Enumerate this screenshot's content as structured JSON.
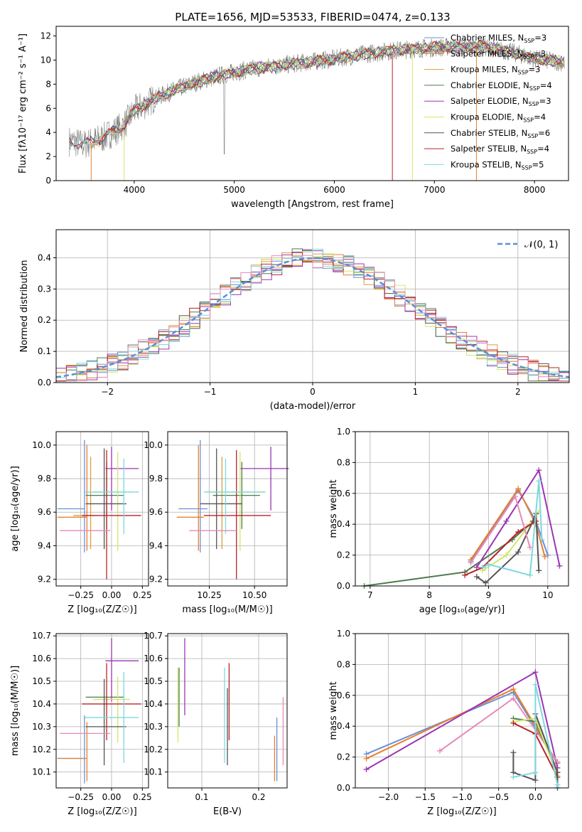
{
  "title": "PLATE=1656, MJD=53533, FIBERID=0474, z=0.133",
  "colors": {
    "Chabrier MILES": "#6a8fd8",
    "Salpeter MILES": "#e87f2e",
    "Kroupa MILES": "#d9a03a",
    "Chabrier ELODIE": "#4f7a4f",
    "Salpeter ELODIE": "#9b35b5",
    "Kroupa ELODIE": "#cfe86a",
    "Chabrier STELIB": "#555555",
    "Salpeter STELIB": "#b8232a",
    "Kroupa STELIB": "#7fd8de",
    "pinkish": "#e68ab8",
    "gray_spec": "#808080",
    "gauss": "#5b8fd6"
  },
  "chart_data": [
    {
      "type": "line",
      "title": "PLATE=1656, MJD=53533, FIBERID=0474, z=0.133",
      "xlabel": "wavelength [Angstrom, rest frame]",
      "ylabel": "Flux [fλ10⁻¹⁷ erg cm⁻² s⁻¹ A⁻¹]",
      "xlim": [
        3220,
        8340
      ],
      "ylim": [
        0,
        12.8
      ],
      "xticks": [
        "4000",
        "5000",
        "6000",
        "7000",
        "8000"
      ],
      "yticks": [
        "0",
        "2",
        "4",
        "6",
        "8",
        "10",
        "12"
      ],
      "legend_position": "right",
      "legend": [
        {
          "label": "Chabrier MILES, N",
          "sub": "SSP",
          "tail": "=3"
        },
        {
          "label": "Salpeter MILES, N",
          "sub": "SSP",
          "tail": "=3"
        },
        {
          "label": "Kroupa MILES, N",
          "sub": "SSP",
          "tail": "=3"
        },
        {
          "label": "Chabrier ELODIE, N",
          "sub": "SSP",
          "tail": "=4"
        },
        {
          "label": "Salpeter ELODIE, N",
          "sub": "SSP",
          "tail": "=3"
        },
        {
          "label": "Kroupa ELODIE, N",
          "sub": "SSP",
          "tail": "=4"
        },
        {
          "label": "Chabrier STELIB, N",
          "sub": "SSP",
          "tail": "=6"
        },
        {
          "label": "Salpeter STELIB, N",
          "sub": "SSP",
          "tail": "=4"
        },
        {
          "label": "Kroupa STELIB, N",
          "sub": "SSP",
          "tail": "=5"
        }
      ],
      "continuum": {
        "x": [
          3350,
          3500,
          3700,
          3900,
          4000,
          4200,
          4400,
          4600,
          4800,
          5000,
          5200,
          5500,
          5800,
          6000,
          6300,
          6600,
          6900,
          7200,
          7500,
          7800,
          8000,
          8300
        ],
        "y": [
          3.3,
          3.0,
          3.6,
          4.6,
          5.8,
          6.8,
          7.5,
          8.1,
          8.6,
          9.0,
          9.3,
          9.6,
          9.9,
          10.1,
          10.5,
          10.8,
          11.0,
          11.1,
          11.1,
          10.6,
          10.1,
          9.8
        ]
      }
    },
    {
      "type": "bar",
      "xlabel": "(data-model)/error",
      "ylabel": "Normed distribution",
      "xlim": [
        -2.5,
        2.5
      ],
      "ylim": [
        0,
        0.49
      ],
      "xticks": [
        "−2",
        "−1",
        "0",
        "1",
        "2"
      ],
      "yticks": [
        "0.0",
        "0.1",
        "0.2",
        "0.3",
        "0.4"
      ],
      "legend": "𝒩(0, 1)",
      "legend_position": "top-right",
      "bin_width": 0.1,
      "x_start": -2.5
    },
    {
      "type": "scatter",
      "xlabel": "Z [log₁₀(Z/Z☉)]",
      "ylabel": "age  [log₁₀(age/yr)]",
      "xticks": [
        "−0.25",
        "0.00",
        "0.25"
      ],
      "yticks": [
        "9.2",
        "9.4",
        "9.6",
        "9.8",
        "10.0"
      ],
      "points": [
        {
          "series": "Chabrier MILES",
          "x": -0.22,
          "xerr": [
            0.22,
            0.0
          ],
          "y": 9.62,
          "yerr": [
            0.26,
            0.41
          ]
        },
        {
          "series": "Salpeter MILES",
          "x": -0.2,
          "xerr": [
            0.24,
            0.0
          ],
          "y": 9.57,
          "yerr": [
            0.2,
            0.43
          ]
        },
        {
          "series": "Kroupa MILES",
          "x": -0.17,
          "xerr": [
            0.14,
            0.05
          ],
          "y": 9.58,
          "yerr": [
            0.2,
            0.35
          ]
        },
        {
          "series": "Chabrier ELODIE",
          "x": -0.04,
          "xerr": [
            0.17,
            0.14
          ],
          "y": 9.7,
          "yerr": [
            0.2,
            0.2
          ]
        },
        {
          "series": "Salpeter ELODIE",
          "x": 0.0,
          "xerr": [
            0.05,
            0.22
          ],
          "y": 9.86,
          "yerr": [
            0.25,
            0.13
          ]
        },
        {
          "series": "Kroupa ELODIE",
          "x": 0.05,
          "xerr": [
            0.2,
            0.1
          ],
          "y": 9.72,
          "yerr": [
            0.35,
            0.24
          ]
        },
        {
          "series": "Chabrier STELIB",
          "x": -0.06,
          "xerr": [
            0.15,
            0.18
          ],
          "y": 9.65,
          "yerr": [
            0.27,
            0.33
          ]
        },
        {
          "series": "Salpeter STELIB",
          "x": -0.04,
          "xerr": [
            0.2,
            0.28
          ],
          "y": 9.58,
          "yerr": [
            0.38,
            0.39
          ]
        },
        {
          "series": "Kroupa STELIB",
          "x": 0.1,
          "xerr": [
            0.32,
            0.12
          ],
          "y": 9.72,
          "yerr": [
            0.25,
            0.2
          ]
        },
        {
          "series": "pinkish",
          "x": -0.16,
          "xerr": [
            0.26,
            0.15
          ],
          "y": 9.49,
          "yerr": [
            0.0,
            0.0
          ]
        }
      ]
    },
    {
      "type": "scatter",
      "xlabel": "mass [log₁₀(M/M☉)]",
      "xticks": [
        "10.25",
        "10.50"
      ],
      "yticks": [
        "9.2",
        "9.4",
        "9.6",
        "9.8",
        "10.0"
      ],
      "points": [
        {
          "series": "Chabrier MILES",
          "x": 10.2,
          "xerr": [
            0.12,
            0.04
          ],
          "y": 9.62,
          "yerr": [
            0.26,
            0.41
          ]
        },
        {
          "series": "Salpeter MILES",
          "x": 10.19,
          "xerr": [
            0.12,
            0.03
          ],
          "y": 9.57,
          "yerr": [
            0.2,
            0.43
          ]
        },
        {
          "series": "Kroupa MILES",
          "x": 10.32,
          "xerr": [
            0.0,
            0.0
          ],
          "y": 9.58,
          "yerr": [
            0.2,
            0.35
          ]
        },
        {
          "series": "Chabrier ELODIE",
          "x": 10.43,
          "xerr": [
            0.16,
            0.1
          ],
          "y": 9.7,
          "yerr": [
            0.2,
            0.2
          ]
        },
        {
          "series": "Salpeter ELODIE",
          "x": 10.59,
          "xerr": [
            0.17,
            0.1
          ],
          "y": 9.86,
          "yerr": [
            0.25,
            0.13
          ]
        },
        {
          "series": "Kroupa ELODIE",
          "x": 10.42,
          "xerr": [
            0.18,
            0.14
          ],
          "y": 9.72,
          "yerr": [
            0.35,
            0.24
          ]
        },
        {
          "series": "Chabrier STELIB",
          "x": 10.29,
          "xerr": [
            0.09,
            0.14
          ],
          "y": 9.65,
          "yerr": [
            0.27,
            0.33
          ]
        },
        {
          "series": "Salpeter STELIB",
          "x": 10.4,
          "xerr": [
            0.18,
            0.19
          ],
          "y": 9.58,
          "yerr": [
            0.38,
            0.39
          ]
        },
        {
          "series": "Kroupa STELIB",
          "x": 10.34,
          "xerr": [
            0.12,
            0.22
          ],
          "y": 9.72,
          "yerr": [
            0.25,
            0.2
          ]
        },
        {
          "series": "pinkish",
          "x": 10.27,
          "xerr": [
            0.13,
            0.13
          ],
          "y": 9.49,
          "yerr": [
            0.0,
            0.0
          ]
        }
      ]
    },
    {
      "type": "line",
      "xlabel": "age  [log₁₀(age/yr)]",
      "ylabel": "mass weight",
      "xlim": [
        6.75,
        10.35
      ],
      "ylim": [
        0,
        1
      ],
      "xticks": [
        "7",
        "8",
        "9",
        "10"
      ],
      "yticks": [
        "0.0",
        "0.2",
        "0.4",
        "0.6",
        "0.8",
        "1.0"
      ],
      "series": [
        {
          "name": "Chabrier MILES",
          "x": [
            8.7,
            9.5,
            9.8,
            10.0
          ],
          "y": [
            0.16,
            0.62,
            0.42,
            0.2
          ]
        },
        {
          "name": "Salpeter MILES",
          "x": [
            8.7,
            9.5,
            9.8,
            9.95
          ],
          "y": [
            0.17,
            0.63,
            0.4,
            0.19
          ]
        },
        {
          "name": "Chabrier ELODIE",
          "x": [
            6.9,
            8.6,
            9.4,
            9.75
          ],
          "y": [
            0.0,
            0.09,
            0.3,
            0.42
          ]
        },
        {
          "name": "Salpeter ELODIE",
          "x": [
            8.8,
            9.3,
            9.85,
            10.2
          ],
          "y": [
            0.12,
            0.42,
            0.75,
            0.13
          ]
        },
        {
          "name": "Kroupa ELODIE",
          "x": [
            8.9,
            9.3,
            9.7,
            9.85
          ],
          "y": [
            0.1,
            0.2,
            0.4,
            0.48
          ]
        },
        {
          "name": "Chabrier STELIB",
          "x": [
            8.8,
            8.95,
            9.5,
            9.75,
            9.8,
            9.85
          ],
          "y": [
            0.06,
            0.02,
            0.22,
            0.42,
            0.47,
            0.1
          ]
        },
        {
          "name": "Salpeter STELIB",
          "x": [
            8.6,
            8.9,
            9.5,
            9.8
          ],
          "y": [
            0.07,
            0.12,
            0.35,
            0.42
          ]
        },
        {
          "name": "Kroupa STELIB",
          "x": [
            8.9,
            9.0,
            9.7,
            9.85,
            9.9
          ],
          "y": [
            0.12,
            0.14,
            0.07,
            0.68,
            0.3
          ]
        },
        {
          "name": "pinkish",
          "x": [
            8.7,
            9.45,
            9.7
          ],
          "y": [
            0.15,
            0.58,
            0.25
          ]
        }
      ]
    },
    {
      "type": "scatter",
      "xlabel": "Z [log₁₀(Z/Z☉)]",
      "ylabel": "mass [log₁₀(M/M☉)]",
      "xticks": [
        "−0.25",
        "0.00",
        "0.25"
      ],
      "yticks": [
        "10.1",
        "10.2",
        "10.3",
        "10.4",
        "10.5",
        "10.6",
        "10.7"
      ],
      "points": [
        {
          "series": "Chabrier MILES",
          "x": -0.22,
          "xerr": [
            0.22,
            0.0
          ],
          "y": 10.16,
          "yerr": [
            0.11,
            0.19
          ]
        },
        {
          "series": "Salpeter MILES",
          "x": -0.2,
          "xerr": [
            0.24,
            0.0
          ],
          "y": 10.16,
          "yerr": [
            0.1,
            0.16
          ]
        },
        {
          "series": "Kroupa MILES",
          "x": -0.15,
          "xerr": [
            0.0,
            0.0
          ],
          "y": 10.16,
          "yerr": [
            0.0,
            0.0
          ]
        },
        {
          "series": "Chabrier ELODIE",
          "x": -0.04,
          "xerr": [
            0.17,
            0.14
          ],
          "y": 10.43,
          "yerr": [
            0.0,
            0.0
          ]
        },
        {
          "series": "Salpeter ELODIE",
          "x": 0.0,
          "xerr": [
            0.05,
            0.22
          ],
          "y": 10.59,
          "yerr": [
            0.18,
            0.1
          ]
        },
        {
          "series": "Kroupa ELODIE",
          "x": 0.05,
          "xerr": [
            0.2,
            0.1
          ],
          "y": 10.42,
          "yerr": [
            0.19,
            0.1
          ]
        },
        {
          "series": "Chabrier STELIB",
          "x": -0.06,
          "xerr": [
            0.15,
            0.18
          ],
          "y": 10.3,
          "yerr": [
            0.17,
            0.21
          ]
        },
        {
          "series": "Salpeter STELIB",
          "x": -0.04,
          "xerr": [
            0.2,
            0.28
          ],
          "y": 10.4,
          "yerr": [
            0.16,
            0.18
          ]
        },
        {
          "series": "Kroupa STELIB",
          "x": 0.1,
          "xerr": [
            0.32,
            0.12
          ],
          "y": 10.34,
          "yerr": [
            0.2,
            0.2
          ]
        },
        {
          "series": "pinkish",
          "x": -0.16,
          "xerr": [
            0.26,
            0.15
          ],
          "y": 10.27,
          "yerr": [
            0.0,
            0.0
          ]
        }
      ]
    },
    {
      "type": "scatter",
      "xlabel": "E(B-V)",
      "xticks": [
        "0.1",
        "0.2"
      ],
      "yticks": [
        "10.1",
        "10.2",
        "10.3",
        "10.4",
        "10.5",
        "10.6",
        "10.7"
      ],
      "points": [
        {
          "series": "Kroupa ELODIE",
          "x": 0.058,
          "y": 10.38,
          "yerr": [
            0.15,
            0.18
          ]
        },
        {
          "series": "Chabrier ELODIE",
          "x": 0.06,
          "y": 10.43,
          "yerr": [
            0.13,
            0.13
          ]
        },
        {
          "series": "Salpeter ELODIE",
          "x": 0.07,
          "y": 10.52,
          "yerr": [
            0.17,
            0.17
          ]
        },
        {
          "series": "Kroupa STELIB",
          "x": 0.14,
          "y": 10.34,
          "yerr": [
            0.2,
            0.22
          ]
        },
        {
          "series": "Chabrier STELIB",
          "x": 0.145,
          "y": 10.3,
          "yerr": [
            0.17,
            0.17
          ]
        },
        {
          "series": "Salpeter STELIB",
          "x": 0.148,
          "y": 10.4,
          "yerr": [
            0.16,
            0.18
          ]
        },
        {
          "series": "Salpeter MILES",
          "x": 0.228,
          "y": 10.16,
          "yerr": [
            0.1,
            0.1
          ]
        },
        {
          "series": "Chabrier MILES",
          "x": 0.232,
          "y": 10.2,
          "yerr": [
            0.14,
            0.14
          ]
        },
        {
          "series": "pinkish",
          "x": 0.243,
          "y": 10.28,
          "yerr": [
            0.15,
            0.15
          ]
        }
      ]
    },
    {
      "type": "line",
      "xlabel": "Z [log₁₀(Z/Z☉)]",
      "ylabel": "mass weight",
      "xlim": [
        -2.45,
        0.45
      ],
      "ylim": [
        0,
        1
      ],
      "xticks": [
        "−2.0",
        "−1.5",
        "−1.0",
        "−0.5",
        "0.0"
      ],
      "yticks": [
        "0.0",
        "0.2",
        "0.4",
        "0.6",
        "0.8",
        "1.0"
      ],
      "series": [
        {
          "name": "Chabrier MILES",
          "x": [
            -2.3,
            -0.3,
            0.3
          ],
          "y": [
            0.22,
            0.62,
            0.16
          ]
        },
        {
          "name": "Salpeter MILES",
          "x": [
            -2.3,
            -0.3,
            0.3
          ],
          "y": [
            0.19,
            0.64,
            0.16
          ]
        },
        {
          "name": "Salpeter ELODIE",
          "x": [
            -2.3,
            0.0,
            0.3
          ],
          "y": [
            0.12,
            0.75,
            0.13
          ]
        },
        {
          "name": "pinkish",
          "x": [
            -1.3,
            -0.3,
            0.3
          ],
          "y": [
            0.24,
            0.58,
            0.17
          ]
        },
        {
          "name": "Chabrier ELODIE",
          "x": [
            -0.3,
            0.0,
            0.3
          ],
          "y": [
            0.45,
            0.43,
            0.1
          ]
        },
        {
          "name": "Kroupa ELODIE",
          "x": [
            -0.3,
            0.0,
            0.3
          ],
          "y": [
            0.43,
            0.45,
            0.08
          ]
        },
        {
          "name": "Salpeter STELIB",
          "x": [
            -0.3,
            0.0,
            0.3
          ],
          "y": [
            0.42,
            0.35,
            0.07
          ]
        },
        {
          "name": "Chabrier STELIB",
          "x": [
            -0.3,
            -0.3,
            0.0,
            0.0,
            0.3,
            0.3
          ],
          "y": [
            0.23,
            0.1,
            0.05,
            0.48,
            0.1,
            0.0
          ]
        },
        {
          "name": "Kroupa STELIB",
          "x": [
            -0.3,
            0.0,
            0.0,
            0.3
          ],
          "y": [
            0.07,
            0.1,
            0.67,
            0.02
          ]
        }
      ]
    }
  ]
}
